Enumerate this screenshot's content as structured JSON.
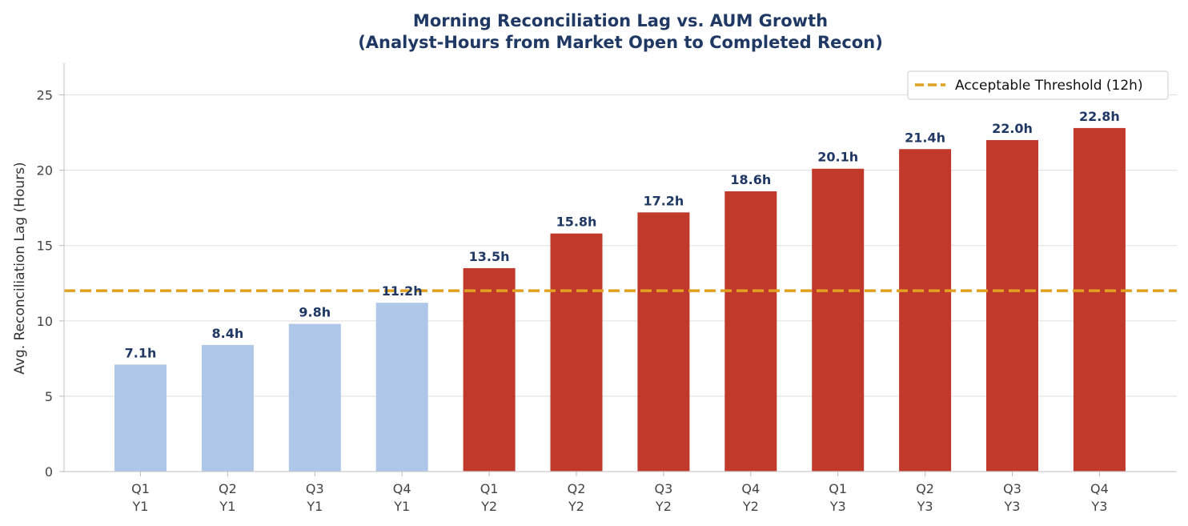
{
  "chart_data": {
    "type": "bar",
    "title_line1": "Morning Reconciliation Lag vs. AUM Growth",
    "title_line2": "(Analyst-Hours from Market Open to Completed Recon)",
    "ylabel": "Avg. Reconciliation Lag (Hours)",
    "xlabel": "",
    "ylim": [
      0,
      27
    ],
    "yticks": [
      "0",
      "5",
      "10",
      "15",
      "20",
      "25"
    ],
    "ytick_values": [
      0,
      5,
      10,
      15,
      20,
      25
    ],
    "grid": "horizontal",
    "categories": [
      {
        "q": "Q1",
        "y": "Y1"
      },
      {
        "q": "Q2",
        "y": "Y1"
      },
      {
        "q": "Q3",
        "y": "Y1"
      },
      {
        "q": "Q4",
        "y": "Y1"
      },
      {
        "q": "Q1",
        "y": "Y2"
      },
      {
        "q": "Q2",
        "y": "Y2"
      },
      {
        "q": "Q3",
        "y": "Y2"
      },
      {
        "q": "Q4",
        "y": "Y2"
      },
      {
        "q": "Q1",
        "y": "Y3"
      },
      {
        "q": "Q2",
        "y": "Y3"
      },
      {
        "q": "Q3",
        "y": "Y3"
      },
      {
        "q": "Q4",
        "y": "Y3"
      }
    ],
    "values": [
      7.1,
      8.4,
      9.8,
      11.2,
      13.5,
      15.8,
      17.2,
      18.6,
      20.1,
      21.4,
      22.0,
      22.8
    ],
    "data_labels": [
      "7.1h",
      "8.4h",
      "9.8h",
      "11.2h",
      "13.5h",
      "15.8h",
      "17.2h",
      "18.6h",
      "20.1h",
      "21.4h",
      "22.0h",
      "22.8h"
    ],
    "threshold": {
      "value": 12,
      "label": "Acceptable Threshold (12h)",
      "color": "#e0a020"
    },
    "colors": {
      "below": "#aec6e8",
      "above": "#c0392b",
      "title": "#1f3864",
      "label": "#1f3864"
    },
    "legend_position": "top-right"
  }
}
